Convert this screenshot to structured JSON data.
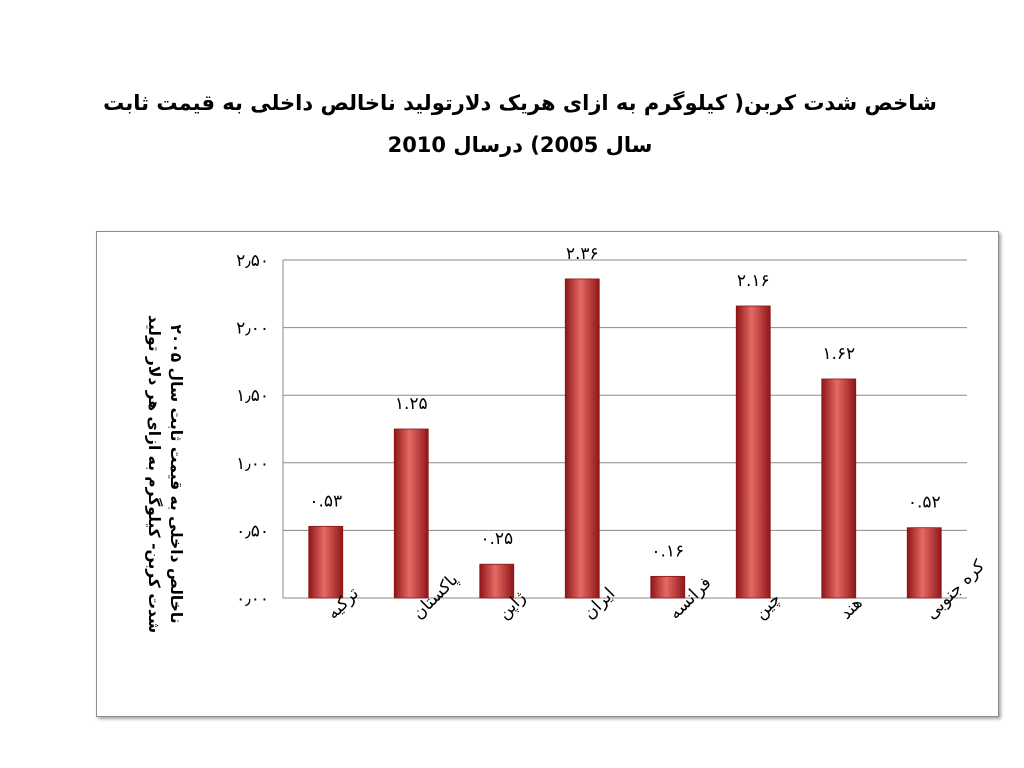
{
  "title": {
    "line1": "شاخص شدت کربن( کیلوگرم به ازای هریک دلارتولید ناخالص داخلی به قیمت ثابت",
    "line2": "سال 2005) درسال 2010"
  },
  "chart_data": {
    "type": "bar",
    "title": "",
    "ylabel_line1": "شدت کربن- کیلوگرم به ازای هر دلار تولید",
    "ylabel_line2": "ناخالص داخلی به قیمت ثابت سال ۲۰۰۵",
    "ylim": [
      0,
      2.5
    ],
    "yticks": [
      0,
      0.5,
      1.0,
      1.5,
      2.0,
      2.5
    ],
    "ytick_labels": [
      "۰٫۰۰",
      "۰٫۵۰",
      "۱٫۰۰",
      "۱٫۵۰",
      "۲٫۰۰",
      "۲٫۵۰"
    ],
    "grid": true,
    "categories": [
      "ترکیه",
      "پاکستان",
      "ژاپن",
      "ایران",
      "فرانسه",
      "چین",
      "هند",
      "کره جنوبی"
    ],
    "values": [
      0.53,
      1.25,
      0.25,
      2.36,
      0.16,
      2.16,
      1.62,
      0.52
    ],
    "data_labels": [
      "۰.۵۳",
      "۱.۲۵",
      "۰.۲۵",
      "۲.۳۶",
      "۰.۱۶",
      "۲.۱۶",
      "۱.۶۲",
      "۰.۵۲"
    ],
    "bar_color": "#c0282b",
    "bar_highlight": "#e46a64",
    "bar_shade": "#8e1618"
  }
}
